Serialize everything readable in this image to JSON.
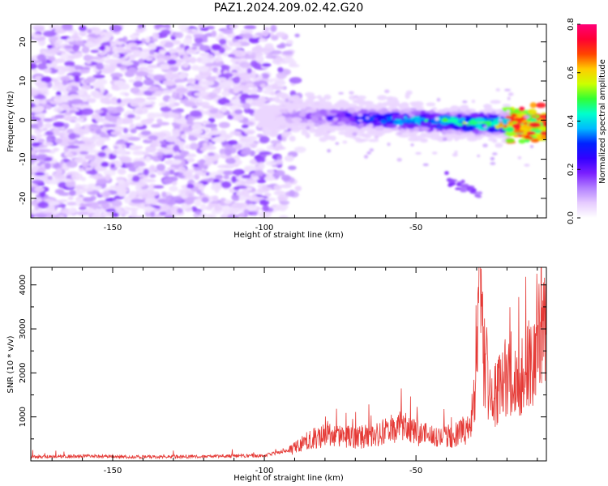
{
  "title": "PAZ1.2024.209.02.42.G20",
  "colors": {
    "signal_line": "#e53935",
    "frame": "#000000"
  },
  "chart_data": [
    {
      "type": "heatmap",
      "xlabel": "Height of straight line (km)",
      "ylabel": "Frequency (Hz)",
      "xlim": [
        -177,
        -7
      ],
      "ylim": [
        -25,
        24.5
      ],
      "xticks": [
        -150,
        -100,
        -50
      ],
      "xtick_labels": [
        "-150",
        "-100",
        "-50"
      ],
      "yticks": [
        -20,
        -10,
        0,
        10,
        20
      ],
      "ytick_labels": [
        "-20",
        "-10",
        "0",
        "10",
        "20"
      ],
      "colorbar": {
        "label": "Normalized spectral amplitude",
        "range": [
          0.0,
          0.8
        ],
        "ticks": [
          0.0,
          0.2,
          0.4,
          0.6,
          0.8
        ],
        "tick_labels": [
          "0.0",
          "0.2",
          "0.4",
          "0.6",
          "0.8"
        ],
        "colormap": [
          "#ffffff",
          "#e6ccff",
          "#b380ff",
          "#7a1fff",
          "#3300ff",
          "#0022ff",
          "#00bbff",
          "#00ffcc",
          "#33ff33",
          "#ccff00",
          "#ffcc00",
          "#ff4400",
          "#ff0033",
          "#ff0077"
        ]
      },
      "features": [
        {
          "name": "noise",
          "x_range": [
            -177,
            -87
          ],
          "y_range": [
            -25,
            24
          ],
          "amplitude": 0.08
        },
        {
          "name": "signal_band",
          "x_range": [
            -102,
            -7
          ],
          "y_center_start": 1.5,
          "y_center_end": -1.5,
          "amplitude_max": 0.7
        },
        {
          "name": "reflection",
          "x_range": [
            -40,
            -29
          ],
          "y_center_start": -15,
          "y_center_end": -19,
          "amplitude": 0.12
        }
      ]
    },
    {
      "type": "line",
      "xlabel": "Height of straight line (km)",
      "ylabel": "SNR (10 * v/v)",
      "xlim": [
        -177,
        -7
      ],
      "ylim": [
        0,
        4400
      ],
      "xticks": [
        -150,
        -100,
        -50
      ],
      "xtick_labels": [
        "-150",
        "-100",
        "-50"
      ],
      "yticks": [
        1000,
        2000,
        3000,
        4000
      ],
      "ytick_labels": [
        "1000",
        "2000",
        "3000",
        "4000"
      ],
      "series": [
        {
          "x": [
            -177,
            -160,
            -140,
            -120,
            -100,
            -92,
            -85,
            -78,
            -70,
            -62,
            -55,
            -48,
            -42,
            -36,
            -32,
            -30,
            -29,
            -27.5,
            -25,
            -22,
            -19,
            -17,
            -15,
            -12,
            -9.5,
            -7
          ],
          "y": [
            90,
            110,
            90,
            100,
            120,
            250,
            550,
            700,
            600,
            700,
            900,
            700,
            600,
            700,
            900,
            2400,
            3800,
            2600,
            1600,
            1900,
            2200,
            2000,
            2300,
            2600,
            3100,
            3300
          ]
        }
      ]
    }
  ]
}
